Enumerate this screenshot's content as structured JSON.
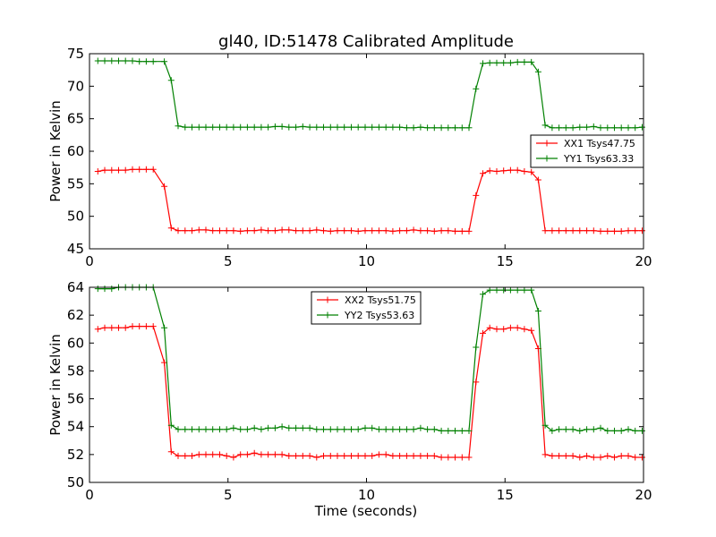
{
  "figure": {
    "title": "gl40, ID:51478 Calibrated Amplitude",
    "xlabel": "Time (seconds)"
  },
  "colors": {
    "red": "#ff0000",
    "green": "#008000",
    "axes": "#000000",
    "background": "#ffffff"
  },
  "chart_data": [
    {
      "type": "line",
      "ylabel": "Power in Kelvin",
      "xlim": [
        0,
        20
      ],
      "ylim": [
        45,
        75
      ],
      "xticks": [
        0,
        5,
        10,
        15,
        20
      ],
      "yticks": [
        45,
        50,
        55,
        60,
        65,
        70,
        75
      ],
      "legend": "right",
      "grid": false,
      "x": [
        0.3,
        0.55,
        0.8,
        1.05,
        1.3,
        1.55,
        1.8,
        2.05,
        2.3,
        2.7,
        2.95,
        3.2,
        3.45,
        3.7,
        3.95,
        4.2,
        4.45,
        4.7,
        4.95,
        5.2,
        5.45,
        5.7,
        5.95,
        6.2,
        6.45,
        6.7,
        6.95,
        7.2,
        7.45,
        7.7,
        7.95,
        8.2,
        8.45,
        8.7,
        8.95,
        9.2,
        9.45,
        9.7,
        9.95,
        10.2,
        10.45,
        10.7,
        10.95,
        11.2,
        11.45,
        11.7,
        11.95,
        12.2,
        12.45,
        12.7,
        12.95,
        13.2,
        13.45,
        13.7,
        13.95,
        14.2,
        14.45,
        14.7,
        14.95,
        15.2,
        15.45,
        15.7,
        15.95,
        16.2,
        16.45,
        16.7,
        16.95,
        17.2,
        17.45,
        17.7,
        17.95,
        18.2,
        18.45,
        18.7,
        18.95,
        19.2,
        19.45,
        19.7,
        19.95
      ],
      "series": [
        {
          "name": "XX1 Tsys47.75",
          "color": "#ff0000",
          "values": [
            56.9,
            57.1,
            57.1,
            57.1,
            57.1,
            57.2,
            57.2,
            57.2,
            57.2,
            54.6,
            48.2,
            47.8,
            47.8,
            47.8,
            47.9,
            47.9,
            47.8,
            47.8,
            47.8,
            47.8,
            47.7,
            47.8,
            47.8,
            47.9,
            47.8,
            47.8,
            47.9,
            47.9,
            47.8,
            47.8,
            47.8,
            47.9,
            47.8,
            47.7,
            47.8,
            47.8,
            47.8,
            47.7,
            47.8,
            47.8,
            47.8,
            47.8,
            47.7,
            47.8,
            47.8,
            47.9,
            47.8,
            47.8,
            47.7,
            47.8,
            47.8,
            47.7,
            47.7,
            47.7,
            53.2,
            56.6,
            57.0,
            56.9,
            57.0,
            57.1,
            57.1,
            56.9,
            56.8,
            55.6,
            47.8,
            47.8,
            47.8,
            47.8,
            47.8,
            47.8,
            47.8,
            47.8,
            47.7,
            47.7,
            47.7,
            47.7,
            47.8,
            47.8,
            47.8
          ]
        },
        {
          "name": "YY1 Tsys63.33",
          "color": "#008000",
          "values": [
            73.9,
            73.9,
            73.9,
            73.9,
            73.9,
            73.9,
            73.8,
            73.8,
            73.8,
            73.8,
            70.9,
            63.9,
            63.7,
            63.7,
            63.7,
            63.7,
            63.7,
            63.7,
            63.7,
            63.7,
            63.7,
            63.7,
            63.7,
            63.7,
            63.7,
            63.8,
            63.8,
            63.7,
            63.7,
            63.8,
            63.7,
            63.7,
            63.7,
            63.7,
            63.7,
            63.7,
            63.7,
            63.7,
            63.7,
            63.7,
            63.7,
            63.7,
            63.7,
            63.7,
            63.6,
            63.6,
            63.7,
            63.6,
            63.6,
            63.6,
            63.6,
            63.6,
            63.6,
            63.6,
            69.6,
            73.5,
            73.6,
            73.6,
            73.6,
            73.6,
            73.7,
            73.7,
            73.7,
            72.2,
            64.0,
            63.6,
            63.6,
            63.6,
            63.6,
            63.7,
            63.7,
            63.8,
            63.6,
            63.6,
            63.6,
            63.6,
            63.6,
            63.6,
            63.7
          ]
        }
      ]
    },
    {
      "type": "line",
      "ylabel": "Power in Kelvin",
      "xlabel": "Time (seconds)",
      "xlim": [
        0,
        20
      ],
      "ylim": [
        50,
        64
      ],
      "xticks": [
        0,
        5,
        10,
        15,
        20
      ],
      "yticks": [
        50,
        52,
        54,
        56,
        58,
        60,
        62,
        64
      ],
      "legend": "top-center",
      "grid": false,
      "x": [
        0.3,
        0.55,
        0.8,
        1.05,
        1.3,
        1.55,
        1.8,
        2.05,
        2.3,
        2.7,
        2.95,
        3.2,
        3.45,
        3.7,
        3.95,
        4.2,
        4.45,
        4.7,
        4.95,
        5.2,
        5.45,
        5.7,
        5.95,
        6.2,
        6.45,
        6.7,
        6.95,
        7.2,
        7.45,
        7.7,
        7.95,
        8.2,
        8.45,
        8.7,
        8.95,
        9.2,
        9.45,
        9.7,
        9.95,
        10.2,
        10.45,
        10.7,
        10.95,
        11.2,
        11.45,
        11.7,
        11.95,
        12.2,
        12.45,
        12.7,
        12.95,
        13.2,
        13.45,
        13.7,
        13.95,
        14.2,
        14.45,
        14.7,
        14.95,
        15.2,
        15.45,
        15.7,
        15.95,
        16.2,
        16.45,
        16.7,
        16.95,
        17.2,
        17.45,
        17.7,
        17.95,
        18.2,
        18.45,
        18.7,
        18.95,
        19.2,
        19.45,
        19.7,
        19.95
      ],
      "series": [
        {
          "name": "XX2 Tsys51.75",
          "color": "#ff0000",
          "values": [
            61.0,
            61.1,
            61.1,
            61.1,
            61.1,
            61.2,
            61.2,
            61.2,
            61.2,
            58.6,
            52.2,
            51.9,
            51.9,
            51.9,
            52.0,
            52.0,
            52.0,
            52.0,
            51.9,
            51.8,
            52.0,
            52.0,
            52.1,
            52.0,
            52.0,
            52.0,
            52.0,
            51.9,
            51.9,
            51.9,
            51.9,
            51.8,
            51.9,
            51.9,
            51.9,
            51.9,
            51.9,
            51.9,
            51.9,
            51.9,
            52.0,
            52.0,
            51.9,
            51.9,
            51.9,
            51.9,
            51.9,
            51.9,
            51.9,
            51.8,
            51.8,
            51.8,
            51.8,
            51.8,
            57.2,
            60.7,
            61.1,
            61.0,
            61.0,
            61.1,
            61.1,
            61.0,
            60.9,
            59.6,
            52.0,
            51.9,
            51.9,
            51.9,
            51.9,
            51.8,
            51.9,
            51.8,
            51.8,
            51.9,
            51.8,
            51.9,
            51.9,
            51.8,
            51.8
          ]
        },
        {
          "name": "YY2 Tsys53.63",
          "color": "#008000",
          "values": [
            63.9,
            63.9,
            63.9,
            64.0,
            64.0,
            64.0,
            64.0,
            64.0,
            64.0,
            61.1,
            54.1,
            53.8,
            53.8,
            53.8,
            53.8,
            53.8,
            53.8,
            53.8,
            53.8,
            53.9,
            53.8,
            53.8,
            53.9,
            53.8,
            53.9,
            53.9,
            54.0,
            53.9,
            53.9,
            53.9,
            53.9,
            53.8,
            53.8,
            53.8,
            53.8,
            53.8,
            53.8,
            53.8,
            53.9,
            53.9,
            53.8,
            53.8,
            53.8,
            53.8,
            53.8,
            53.8,
            53.9,
            53.8,
            53.8,
            53.7,
            53.7,
            53.7,
            53.7,
            53.7,
            59.7,
            63.5,
            63.8,
            63.8,
            63.8,
            63.8,
            63.8,
            63.8,
            63.8,
            62.3,
            54.1,
            53.7,
            53.8,
            53.8,
            53.8,
            53.7,
            53.8,
            53.8,
            53.9,
            53.7,
            53.7,
            53.7,
            53.8,
            53.7,
            53.7
          ]
        }
      ]
    }
  ]
}
